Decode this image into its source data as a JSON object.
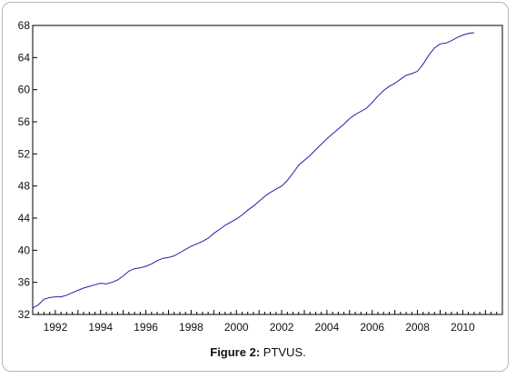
{
  "caption": {
    "label": "Figure 2:",
    "text": " PTVUS."
  },
  "chart_data": {
    "type": "line",
    "title": "",
    "xlabel": "",
    "ylabel": "",
    "xlim": [
      1991.0,
      2011.75
    ],
    "ylim": [
      32,
      68
    ],
    "x_ticks": [
      "1992",
      "1994",
      "1996",
      "1998",
      "2000",
      "2002",
      "2004",
      "2006",
      "2008",
      "2010"
    ],
    "y_ticks": [
      "32",
      "36",
      "40",
      "44",
      "48",
      "52",
      "56",
      "60",
      "64",
      "68"
    ],
    "grid": false,
    "legend": "none",
    "line_color": "#1f1fa8",
    "series": [
      {
        "x": [
          1991.0,
          1991.25,
          1991.5,
          1991.75,
          1992.0,
          1992.25,
          1992.5,
          1992.75,
          1993.0,
          1993.25,
          1993.5,
          1993.75,
          1994.0,
          1994.25,
          1994.5,
          1994.75,
          1995.0,
          1995.25,
          1995.5,
          1995.75,
          1996.0,
          1996.25,
          1996.5,
          1996.75,
          1997.0,
          1997.25,
          1997.5,
          1997.75,
          1998.0,
          1998.25,
          1998.5,
          1998.75,
          1999.0,
          1999.25,
          1999.5,
          1999.75,
          2000.0,
          2000.25,
          2000.5,
          2000.75,
          2001.0,
          2001.25,
          2001.5,
          2001.75,
          2002.0,
          2002.25,
          2002.5,
          2002.75,
          2003.0,
          2003.25,
          2003.5,
          2003.75,
          2004.0,
          2004.25,
          2004.5,
          2004.75,
          2005.0,
          2005.25,
          2005.5,
          2005.75,
          2006.0,
          2006.25,
          2006.5,
          2006.75,
          2007.0,
          2007.25,
          2007.5,
          2007.75,
          2008.0,
          2008.25,
          2008.5,
          2008.75,
          2009.0,
          2009.25,
          2009.5,
          2009.75,
          2010.0,
          2010.25,
          2010.5
        ],
        "y": [
          32.8,
          33.2,
          33.9,
          34.1,
          34.2,
          34.2,
          34.4,
          34.7,
          35.0,
          35.3,
          35.5,
          35.7,
          35.9,
          35.8,
          36.0,
          36.3,
          36.8,
          37.4,
          37.7,
          37.8,
          38.0,
          38.3,
          38.7,
          39.0,
          39.1,
          39.3,
          39.7,
          40.1,
          40.5,
          40.8,
          41.1,
          41.5,
          42.1,
          42.6,
          43.1,
          43.5,
          43.9,
          44.4,
          45.0,
          45.5,
          46.1,
          46.7,
          47.2,
          47.6,
          48.0,
          48.7,
          49.6,
          50.6,
          51.2,
          51.8,
          52.5,
          53.2,
          53.9,
          54.5,
          55.1,
          55.7,
          56.4,
          56.9,
          57.3,
          57.7,
          58.4,
          59.2,
          59.9,
          60.4,
          60.8,
          61.3,
          61.8,
          62.0,
          62.3,
          63.2,
          64.3,
          65.2,
          65.7,
          65.8,
          66.1,
          66.5,
          66.8,
          67.0,
          67.1
        ]
      }
    ]
  }
}
